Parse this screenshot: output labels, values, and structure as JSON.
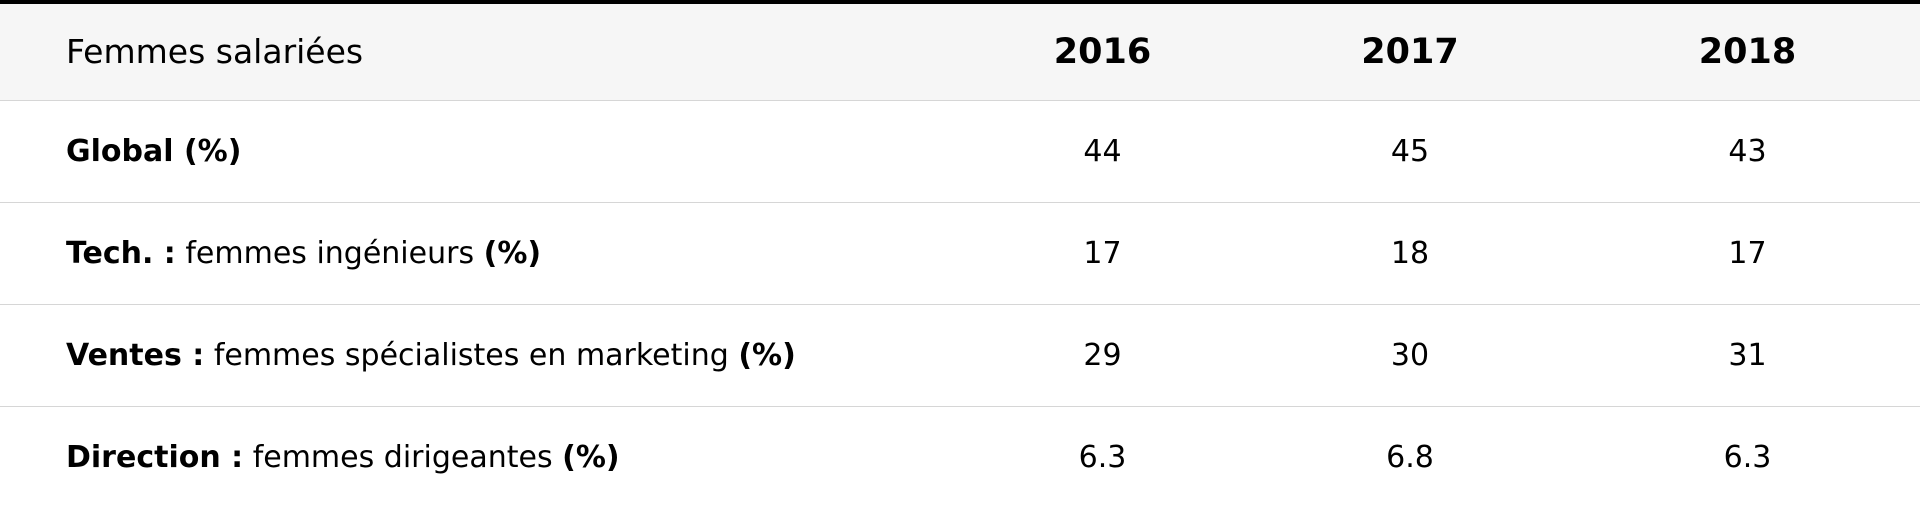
{
  "table": {
    "header": {
      "label": "Femmes salariées",
      "years": [
        "2016",
        "2017",
        "2018"
      ]
    },
    "rows": [
      {
        "bold_prefix": "Global (%)",
        "text": "",
        "bold_suffix": "",
        "values": [
          "44",
          "45",
          "43"
        ]
      },
      {
        "bold_prefix": "Tech. :",
        "text": " femmes ingénieurs ",
        "bold_suffix": "(%)",
        "values": [
          "17",
          "18",
          "17"
        ]
      },
      {
        "bold_prefix": "Ventes :",
        "text": " femmes spécialistes en marketing ",
        "bold_suffix": "(%)",
        "values": [
          "29",
          "30",
          "31"
        ]
      },
      {
        "bold_prefix": "Direction :",
        "text": " femmes dirigeantes ",
        "bold_suffix": "(%)",
        "values": [
          "6.3",
          "6.8",
          "6.3"
        ]
      }
    ]
  }
}
